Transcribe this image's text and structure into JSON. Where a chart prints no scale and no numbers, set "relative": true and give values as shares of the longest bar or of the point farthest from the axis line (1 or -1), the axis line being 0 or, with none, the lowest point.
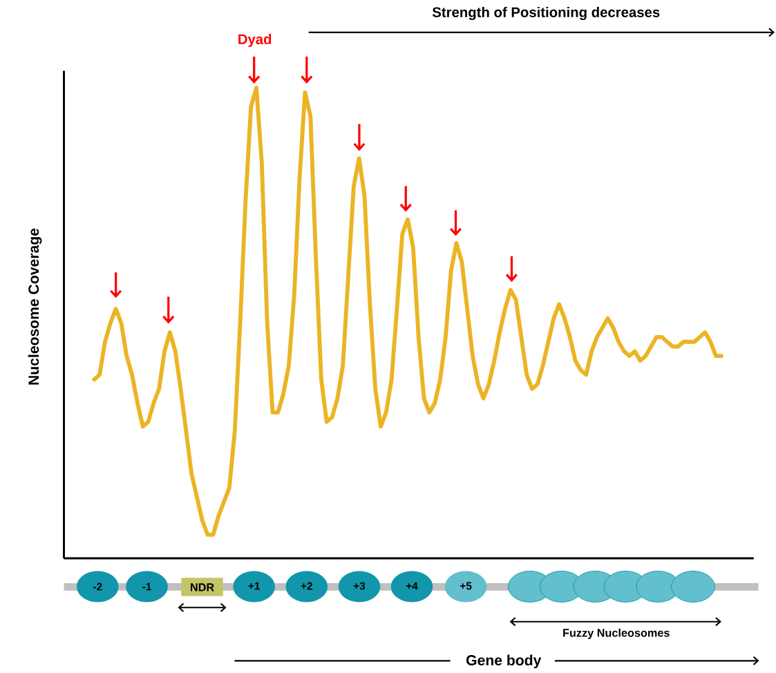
{
  "chart_data": {
    "type": "line",
    "relative": true,
    "ylabel": "Nucleosome Coverage",
    "categories": [
      null,
      null,
      null,
      null,
      null,
      null,
      null,
      null,
      null,
      null,
      null,
      null,
      null,
      null,
      null,
      null,
      null,
      null,
      null,
      null,
      null,
      null,
      null,
      null,
      null,
      null,
      null,
      null,
      null,
      null,
      null,
      null,
      null,
      null,
      null,
      null,
      null,
      null,
      null,
      null,
      null,
      null,
      null,
      null,
      null,
      null,
      null,
      null,
      null,
      null,
      null,
      null,
      null,
      null,
      null,
      null,
      null,
      null,
      null,
      null,
      null,
      null,
      null,
      null,
      null,
      null,
      null,
      null,
      null,
      null,
      null,
      null,
      null,
      null,
      null,
      null,
      null,
      null,
      null,
      null,
      null,
      null,
      null,
      null,
      null,
      null,
      null,
      null,
      null,
      null,
      null,
      null,
      null,
      null,
      null,
      null,
      null,
      null,
      null,
      null,
      null,
      null,
      null,
      null,
      null,
      null,
      null,
      null,
      null,
      null,
      null,
      null,
      null,
      null,
      null,
      null,
      null
    ],
    "series": [
      {
        "color": "#ebb424",
        "values": [
          0.38,
          0.39,
          0.46,
          0.5,
          0.53,
          0.5,
          0.43,
          0.39,
          0.33,
          0.28,
          0.29,
          0.33,
          0.36,
          0.44,
          0.48,
          0.44,
          0.36,
          0.27,
          0.18,
          0.13,
          0.08,
          0.05,
          0.05,
          0.09,
          0.12,
          0.15,
          0.27,
          0.5,
          0.76,
          0.96,
          1.0,
          0.84,
          0.5,
          0.31,
          0.31,
          0.35,
          0.41,
          0.56,
          0.81,
          0.99,
          0.94,
          0.64,
          0.38,
          0.29,
          0.3,
          0.34,
          0.41,
          0.6,
          0.79,
          0.85,
          0.77,
          0.54,
          0.36,
          0.28,
          0.31,
          0.38,
          0.53,
          0.69,
          0.72,
          0.66,
          0.47,
          0.34,
          0.31,
          0.33,
          0.38,
          0.47,
          0.61,
          0.67,
          0.63,
          0.53,
          0.43,
          0.37,
          0.34,
          0.37,
          0.42,
          0.48,
          0.53,
          0.57,
          0.55,
          0.47,
          0.39,
          0.36,
          0.37,
          0.41,
          0.46,
          0.51,
          0.54,
          0.51,
          0.47,
          0.42,
          0.4,
          0.39,
          0.44,
          0.47,
          0.49,
          0.51,
          0.49,
          0.46,
          0.44,
          0.43,
          0.44,
          0.42,
          0.43,
          0.45,
          0.47,
          0.47,
          0.46,
          0.45,
          0.45,
          0.46,
          0.46,
          0.46,
          0.47,
          0.48,
          0.46,
          0.43,
          0.43
        ]
      }
    ],
    "annotations": [
      "Strength of Positioning decreases",
      "Dyad",
      "-2",
      "-1",
      "NDR",
      "+1",
      "+2",
      "+3",
      "+4",
      "+5",
      "Fuzzy Nucleosomes",
      "Gene body"
    ]
  }
}
